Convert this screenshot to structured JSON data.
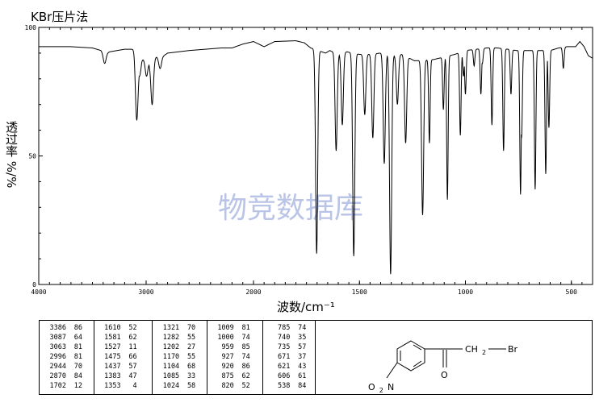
{
  "title": "KBr压片法",
  "watermark": "物竞数据库",
  "chart_data": {
    "type": "line",
    "xlabel": "波数/cm⁻¹",
    "ylabel": "透过率 %/%",
    "xlim": [
      4000,
      400
    ],
    "ylim": [
      0,
      100
    ],
    "x_ticks": [
      4000,
      3000,
      2000,
      1500,
      1000,
      500
    ],
    "x_tick_labels": [
      "4000",
      "3000",
      "2000",
      "1500",
      "1000",
      "500"
    ],
    "y_ticks": [
      0,
      50,
      100
    ],
    "y_tick_labels": [
      "0",
      "50",
      "100"
    ],
    "grid": false,
    "baseline": [
      [
        4000,
        92.5
      ],
      [
        3700,
        92.5
      ],
      [
        3500,
        92.0
      ],
      [
        3420,
        91.0
      ],
      [
        3386,
        89.5
      ],
      [
        3340,
        90.5
      ],
      [
        3200,
        91.5
      ],
      [
        3110,
        91.5
      ],
      [
        3087,
        87.5
      ],
      [
        3063,
        84.5
      ],
      [
        3040,
        87.5
      ],
      [
        2996,
        87.5
      ],
      [
        2970,
        86.0
      ],
      [
        2944,
        88.0
      ],
      [
        2900,
        88.5
      ],
      [
        2870,
        88.0
      ],
      [
        2800,
        90.0
      ],
      [
        2600,
        91.0
      ],
      [
        2300,
        92.0
      ],
      [
        2200,
        92.0
      ],
      [
        2100,
        93.5
      ],
      [
        2000,
        94.5
      ],
      [
        1950,
        92.5
      ],
      [
        1900,
        94.5
      ],
      [
        1800,
        94.8
      ],
      [
        1760,
        94.0
      ],
      [
        1730,
        92.0
      ],
      [
        1660,
        90.0
      ],
      [
        1640,
        91.0
      ],
      [
        1600,
        89.5
      ],
      [
        1560,
        90.5
      ],
      [
        1500,
        89.5
      ],
      [
        1460,
        89.5
      ],
      [
        1400,
        90.0
      ],
      [
        1330,
        89.0
      ],
      [
        1300,
        89.5
      ],
      [
        1240,
        87.0
      ],
      [
        1150,
        87.5
      ],
      [
        1050,
        89.5
      ],
      [
        1000,
        91.0
      ],
      [
        950,
        91.5
      ],
      [
        900,
        92.0
      ],
      [
        850,
        92.0
      ],
      [
        800,
        91.5
      ],
      [
        760,
        91.0
      ],
      [
        700,
        91.0
      ],
      [
        650,
        91.0
      ],
      [
        600,
        91.0
      ],
      [
        560,
        92.0
      ],
      [
        520,
        92.5
      ],
      [
        480,
        92.5
      ],
      [
        460,
        94.5
      ],
      [
        440,
        92.5
      ],
      [
        420,
        89.0
      ],
      [
        400,
        88.0
      ]
    ],
    "peaks": [
      [
        3386,
        86
      ],
      [
        3087,
        64
      ],
      [
        3063,
        81
      ],
      [
        2996,
        81
      ],
      [
        2944,
        70
      ],
      [
        2870,
        84
      ],
      [
        1702,
        12
      ],
      [
        1610,
        52
      ],
      [
        1581,
        62
      ],
      [
        1527,
        11
      ],
      [
        1475,
        66
      ],
      [
        1437,
        57
      ],
      [
        1383,
        47
      ],
      [
        1353,
        4
      ],
      [
        1321,
        70
      ],
      [
        1282,
        55
      ],
      [
        1202,
        27
      ],
      [
        1170,
        55
      ],
      [
        1104,
        68
      ],
      [
        1085,
        33
      ],
      [
        1024,
        58
      ],
      [
        1009,
        81
      ],
      [
        1000,
        74
      ],
      [
        959,
        85
      ],
      [
        927,
        74
      ],
      [
        920,
        86
      ],
      [
        875,
        62
      ],
      [
        820,
        52
      ],
      [
        785,
        74
      ],
      [
        740,
        35
      ],
      [
        735,
        57
      ],
      [
        671,
        37
      ],
      [
        621,
        43
      ],
      [
        606,
        61
      ],
      [
        538,
        84
      ]
    ]
  },
  "peak_table": {
    "columns": [
      [
        [
          "3386",
          "86"
        ],
        [
          "3087",
          "64"
        ],
        [
          "3063",
          "81"
        ],
        [
          "2996",
          "81"
        ],
        [
          "2944",
          "70"
        ],
        [
          "2870",
          "84"
        ],
        [
          "1702",
          "12"
        ]
      ],
      [
        [
          "1610",
          "52"
        ],
        [
          "1581",
          "62"
        ],
        [
          "1527",
          "11"
        ],
        [
          "1475",
          "66"
        ],
        [
          "1437",
          "57"
        ],
        [
          "1383",
          "47"
        ],
        [
          "1353",
          "4"
        ]
      ],
      [
        [
          "1321",
          "70"
        ],
        [
          "1282",
          "55"
        ],
        [
          "1202",
          "27"
        ],
        [
          "1170",
          "55"
        ],
        [
          "1104",
          "68"
        ],
        [
          "1085",
          "33"
        ],
        [
          "1024",
          "58"
        ]
      ],
      [
        [
          "1009",
          "81"
        ],
        [
          "1000",
          "74"
        ],
        [
          "959",
          "85"
        ],
        [
          "927",
          "74"
        ],
        [
          "920",
          "86"
        ],
        [
          "875",
          "62"
        ],
        [
          "820",
          "52"
        ]
      ],
      [
        [
          "785",
          "74"
        ],
        [
          "740",
          "35"
        ],
        [
          "735",
          "57"
        ],
        [
          "671",
          "37"
        ],
        [
          "621",
          "43"
        ],
        [
          "606",
          "61"
        ],
        [
          "538",
          "84"
        ]
      ]
    ]
  },
  "structure": {
    "carbonyl_o": "O",
    "ch2": "CH",
    "ch2_sub": "2",
    "br": "Br",
    "nitro_o": "O",
    "nitro_sub": "2",
    "nitro_n": "N"
  }
}
